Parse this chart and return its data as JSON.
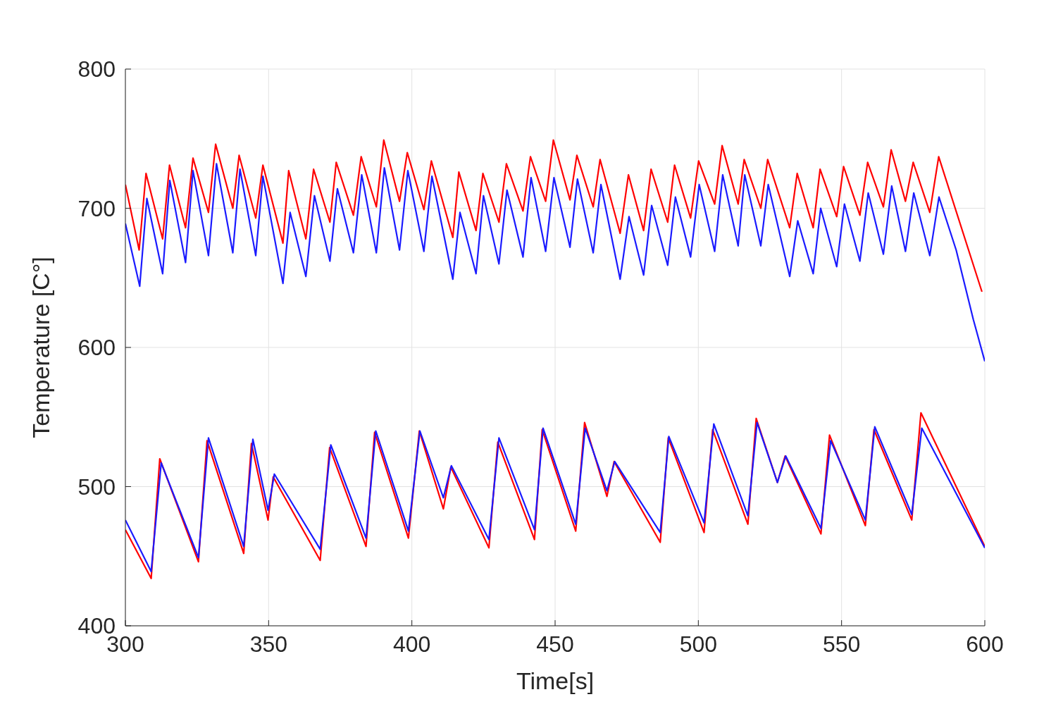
{
  "chart_data": {
    "type": "line",
    "xlabel": "Time[s]",
    "ylabel": "Temperature [C°]",
    "xlim": [
      300,
      600
    ],
    "xticks": [
      300,
      350,
      400,
      450,
      500,
      550,
      600
    ],
    "ylim": [
      400,
      800
    ],
    "yticks": [
      400,
      500,
      600,
      700,
      800
    ],
    "grid": true,
    "marker": "none",
    "line_style": "solid",
    "series": [
      {
        "color": "#ff0000",
        "x": [
          300,
          304.8,
          307.2,
          313,
          315.4,
          321,
          323.6,
          329,
          331.5,
          337.5,
          339.7,
          345.5,
          348,
          355,
          357,
          363,
          365.7,
          371.4,
          373.6,
          379.6,
          382.3,
          387.6,
          390.2,
          395.7,
          398.4,
          404.2,
          406.8,
          414.3,
          416.4,
          422.4,
          424.8,
          430.4,
          433,
          438.8,
          441.4,
          446.7,
          449.4,
          455.2,
          457.6,
          463.3,
          465.7,
          472.7,
          475.6,
          480.9,
          483.5,
          489.3,
          491.7,
          497.3,
          500.1,
          505.7,
          508.3,
          513.9,
          516,
          521.8,
          524.2,
          531.9,
          534.5,
          540.1,
          542.5,
          548.3,
          550.7,
          556.4,
          559.1,
          564.6,
          567.3,
          572.3,
          575,
          580.8,
          583.9,
          599
        ],
        "values": [
          717,
          670,
          725,
          678,
          731,
          686,
          736,
          697,
          746,
          700,
          738,
          693,
          731,
          675,
          727,
          678,
          728,
          690,
          733,
          695,
          737,
          701,
          749,
          705,
          740,
          699,
          734,
          679,
          726,
          684,
          725,
          690,
          732,
          698,
          737,
          705,
          749,
          706,
          738,
          701,
          735,
          682,
          724,
          684,
          728,
          690,
          731,
          693,
          734,
          703,
          745,
          703,
          735,
          700,
          735,
          686,
          725,
          686,
          728,
          694,
          730,
          695,
          733,
          701,
          742,
          705,
          733,
          697,
          737,
          640
        ]
      },
      {
        "color": "#1a1aff",
        "x": [
          300,
          305,
          307.5,
          313,
          315.5,
          321,
          323.6,
          329,
          331.8,
          337.5,
          340,
          345.5,
          348,
          355,
          357.5,
          363,
          366,
          371.4,
          374,
          379.6,
          382.5,
          387.6,
          390.4,
          395.7,
          398.6,
          404.2,
          407,
          414.3,
          416.8,
          422.4,
          425,
          430.4,
          433.2,
          438.8,
          441.6,
          446.7,
          449.6,
          455.2,
          457.8,
          463.3,
          466,
          472.7,
          475.8,
          480.9,
          483.7,
          489.3,
          492,
          497.3,
          500.3,
          505.7,
          508.5,
          513.9,
          516.2,
          521.8,
          524.4,
          531.9,
          534.7,
          540.1,
          542.7,
          548.3,
          551,
          556.4,
          559.3,
          564.6,
          567.5,
          572.3,
          575.2,
          580.8,
          584,
          590,
          596,
          600
        ],
        "values": [
          689,
          644,
          707,
          653,
          720,
          661,
          727,
          666,
          732,
          668,
          728,
          666,
          723,
          646,
          697,
          651,
          709,
          662,
          714,
          668,
          724,
          668,
          729,
          670,
          727,
          669,
          723,
          649,
          697,
          653,
          709,
          660,
          713,
          665,
          722,
          669,
          722,
          672,
          721,
          668,
          717,
          649,
          694,
          652,
          702,
          659,
          708,
          665,
          717,
          669,
          724,
          673,
          724,
          673,
          717,
          651,
          691,
          653,
          700,
          658,
          703,
          662,
          711,
          667,
          716,
          669,
          711,
          666,
          708,
          670,
          620,
          590
        ]
      },
      {
        "color": "#ff0000",
        "x": [
          300,
          309,
          312,
          325.5,
          328.5,
          341.3,
          344,
          349.8,
          351.6,
          368,
          371.3,
          384,
          387,
          398.8,
          402.6,
          411,
          413.6,
          426.9,
          430,
          442.8,
          445.5,
          457.2,
          460.3,
          468.1,
          470.6,
          486.7,
          489.5,
          502,
          505,
          517.3,
          520.2,
          527.6,
          530.3,
          542.8,
          545.8,
          558.3,
          561.3,
          574.5,
          577.7,
          600
        ],
        "values": [
          469,
          434,
          520,
          446,
          533,
          452,
          531,
          476,
          507,
          447,
          528,
          457,
          539,
          463,
          540,
          484,
          514,
          456,
          532,
          462,
          541,
          468,
          546,
          493,
          518,
          460,
          535,
          467,
          541,
          473,
          549,
          503,
          522,
          466,
          537,
          472,
          541,
          476,
          553,
          457
        ]
      },
      {
        "color": "#1a1aff",
        "x": [
          300,
          309,
          312.5,
          325.5,
          329,
          341.3,
          344.5,
          349.8,
          352,
          368,
          371.7,
          384,
          387.4,
          398.8,
          402.8,
          411,
          413.8,
          426.9,
          430.4,
          442.8,
          445.8,
          457.2,
          460.5,
          468.1,
          470.8,
          486.7,
          489.7,
          502,
          505.4,
          517.3,
          520.5,
          527.6,
          530.5,
          542.8,
          546.2,
          558.3,
          561.6,
          574.5,
          578,
          600
        ],
        "values": [
          476,
          439,
          517,
          449,
          535,
          457,
          534,
          483,
          509,
          455,
          530,
          463,
          540,
          468,
          540,
          492,
          515,
          462,
          535,
          469,
          542,
          473,
          542,
          497,
          518,
          467,
          536,
          474,
          545,
          479,
          546,
          503,
          522,
          470,
          533,
          476,
          543,
          480,
          542,
          456
        ]
      }
    ]
  }
}
